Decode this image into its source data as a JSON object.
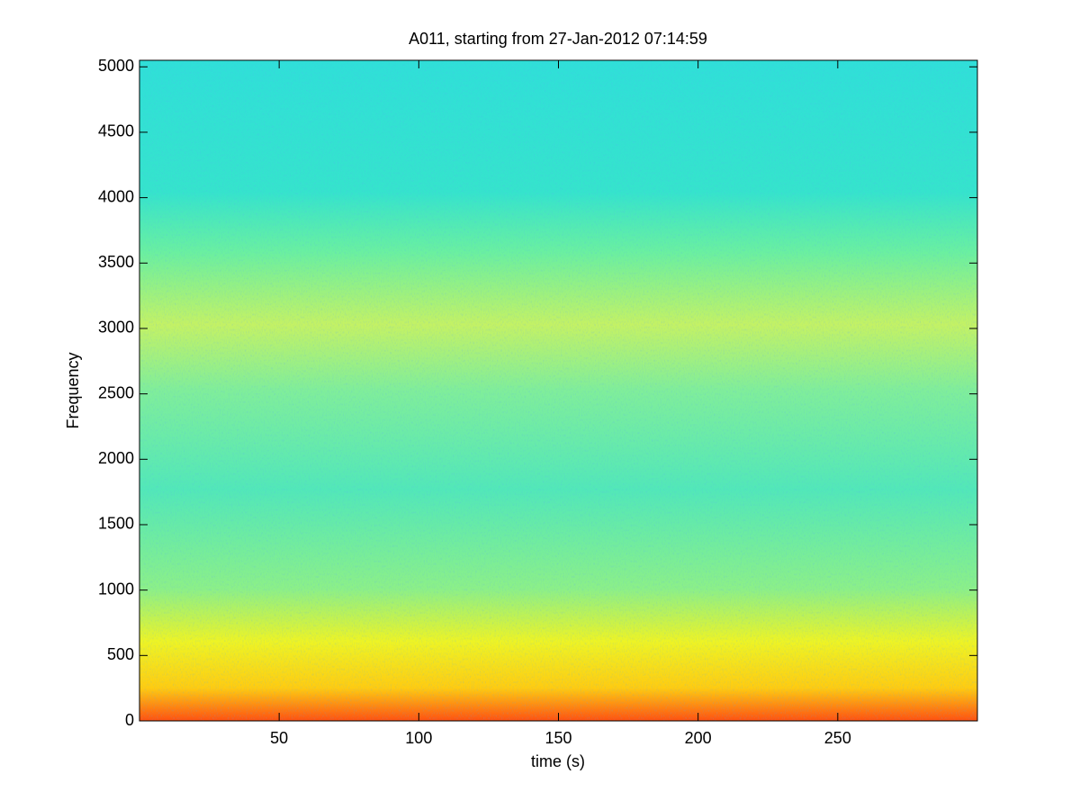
{
  "chart_data": {
    "type": "spectrogram",
    "title": "A011, starting from 27-Jan-2012 07:14:59",
    "x_label": "time (s)",
    "y_label": "Frequency",
    "xlim": [
      0,
      300
    ],
    "xticks": [
      50,
      100,
      150,
      200,
      250
    ],
    "ylim": [
      0,
      5050
    ],
    "yticks": [
      0,
      500,
      1000,
      1500,
      2000,
      2500,
      3000,
      3500,
      4000,
      4500,
      5000
    ],
    "grid": false
  }
}
